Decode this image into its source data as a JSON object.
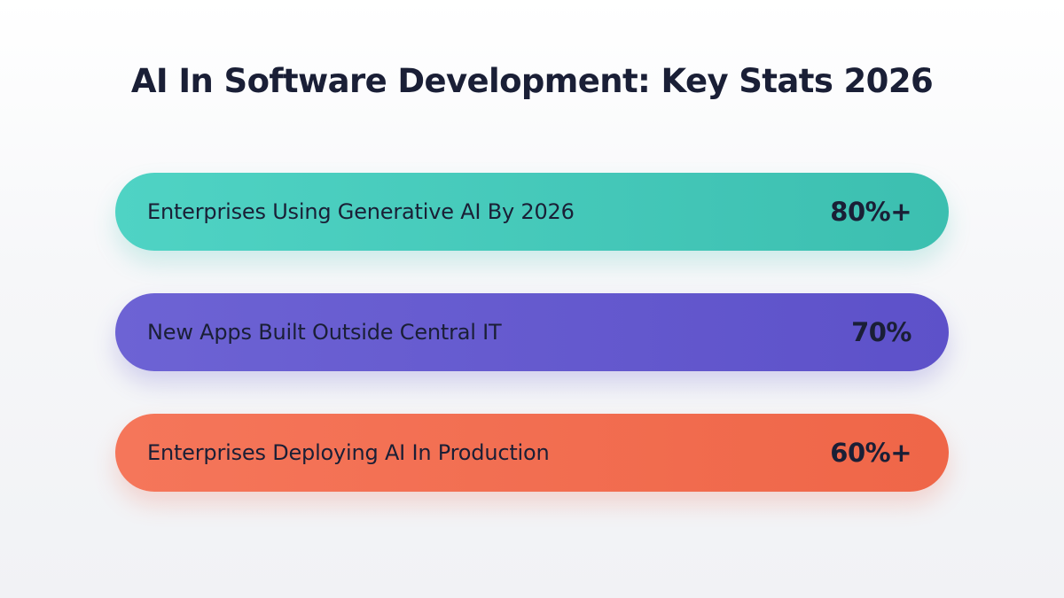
{
  "title": "AI In Software Development: Key Stats 2026",
  "stats": [
    {
      "label": "Enterprises Using Generative AI By 2026",
      "value": "80%+",
      "color": "#45c9ba"
    },
    {
      "label": "New Apps Built Outside Central IT",
      "value": "70%",
      "color": "#6559cf"
    },
    {
      "label": "Enterprises Deploying AI In Production",
      "value": "60%+",
      "color": "#f26e51"
    }
  ]
}
